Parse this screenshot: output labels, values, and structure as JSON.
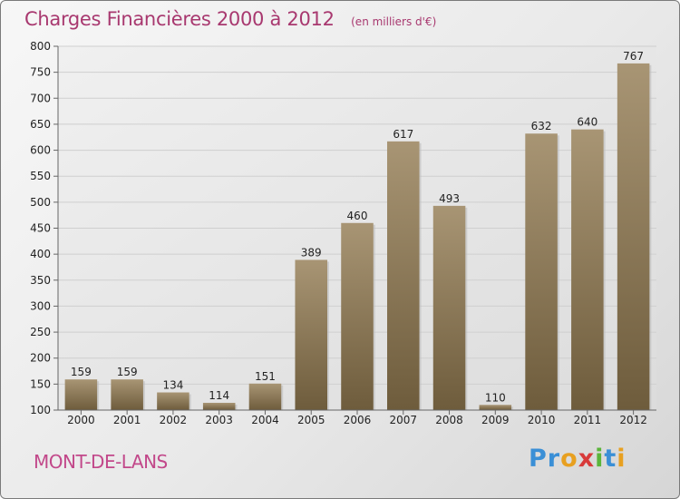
{
  "header": {
    "title": "Charges Financières 2000 à 2012",
    "unit": "(en milliers d'€)"
  },
  "footer": {
    "place": "MONT-DE-LANS",
    "logo_letters": [
      {
        "char": "P",
        "color": "#3a8fd6"
      },
      {
        "char": "r",
        "color": "#3a8fd6"
      },
      {
        "char": "o",
        "color": "#e8a020"
      },
      {
        "char": "x",
        "color": "#d83a3a"
      },
      {
        "char": "i",
        "color": "#5ab53a"
      },
      {
        "char": "t",
        "color": "#3a8fd6"
      },
      {
        "char": "i",
        "color": "#e8a020"
      }
    ]
  },
  "chart_data": {
    "type": "bar",
    "categories": [
      "2000",
      "2001",
      "2002",
      "2003",
      "2004",
      "2005",
      "2006",
      "2007",
      "2008",
      "2009",
      "2010",
      "2011",
      "2012"
    ],
    "values": [
      159,
      159,
      134,
      114,
      151,
      389,
      460,
      617,
      493,
      110,
      632,
      640,
      767
    ],
    "ylim": [
      100,
      800
    ],
    "yticks": [
      100,
      150,
      200,
      250,
      300,
      350,
      400,
      450,
      500,
      550,
      600,
      650,
      700,
      750,
      800
    ],
    "grid": true,
    "bar_color_top": "#a89574",
    "bar_color_bottom": "#6e5c3c"
  }
}
